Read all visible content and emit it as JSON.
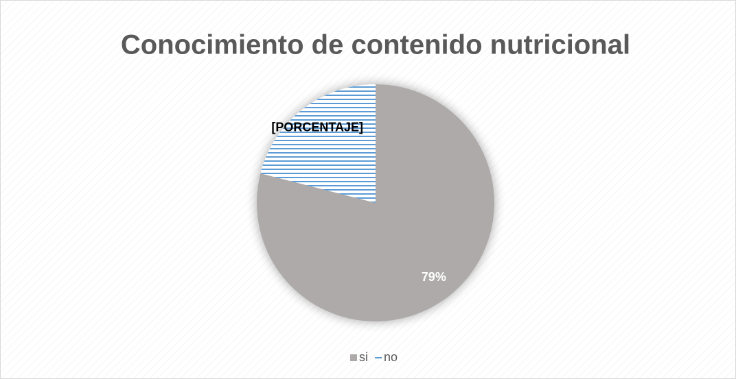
{
  "chart_data": {
    "type": "pie",
    "title": "Conocimiento de contenido nutricional",
    "categories": [
      "si",
      "no"
    ],
    "values": [
      79,
      21
    ],
    "value_labels": [
      "79%",
      "[PORCENTAJE]"
    ],
    "colors": [
      "#aeaaaa",
      "#5b9bd5"
    ],
    "fills": [
      "solid",
      "horizontal-stripes"
    ],
    "legend": "bottom"
  }
}
